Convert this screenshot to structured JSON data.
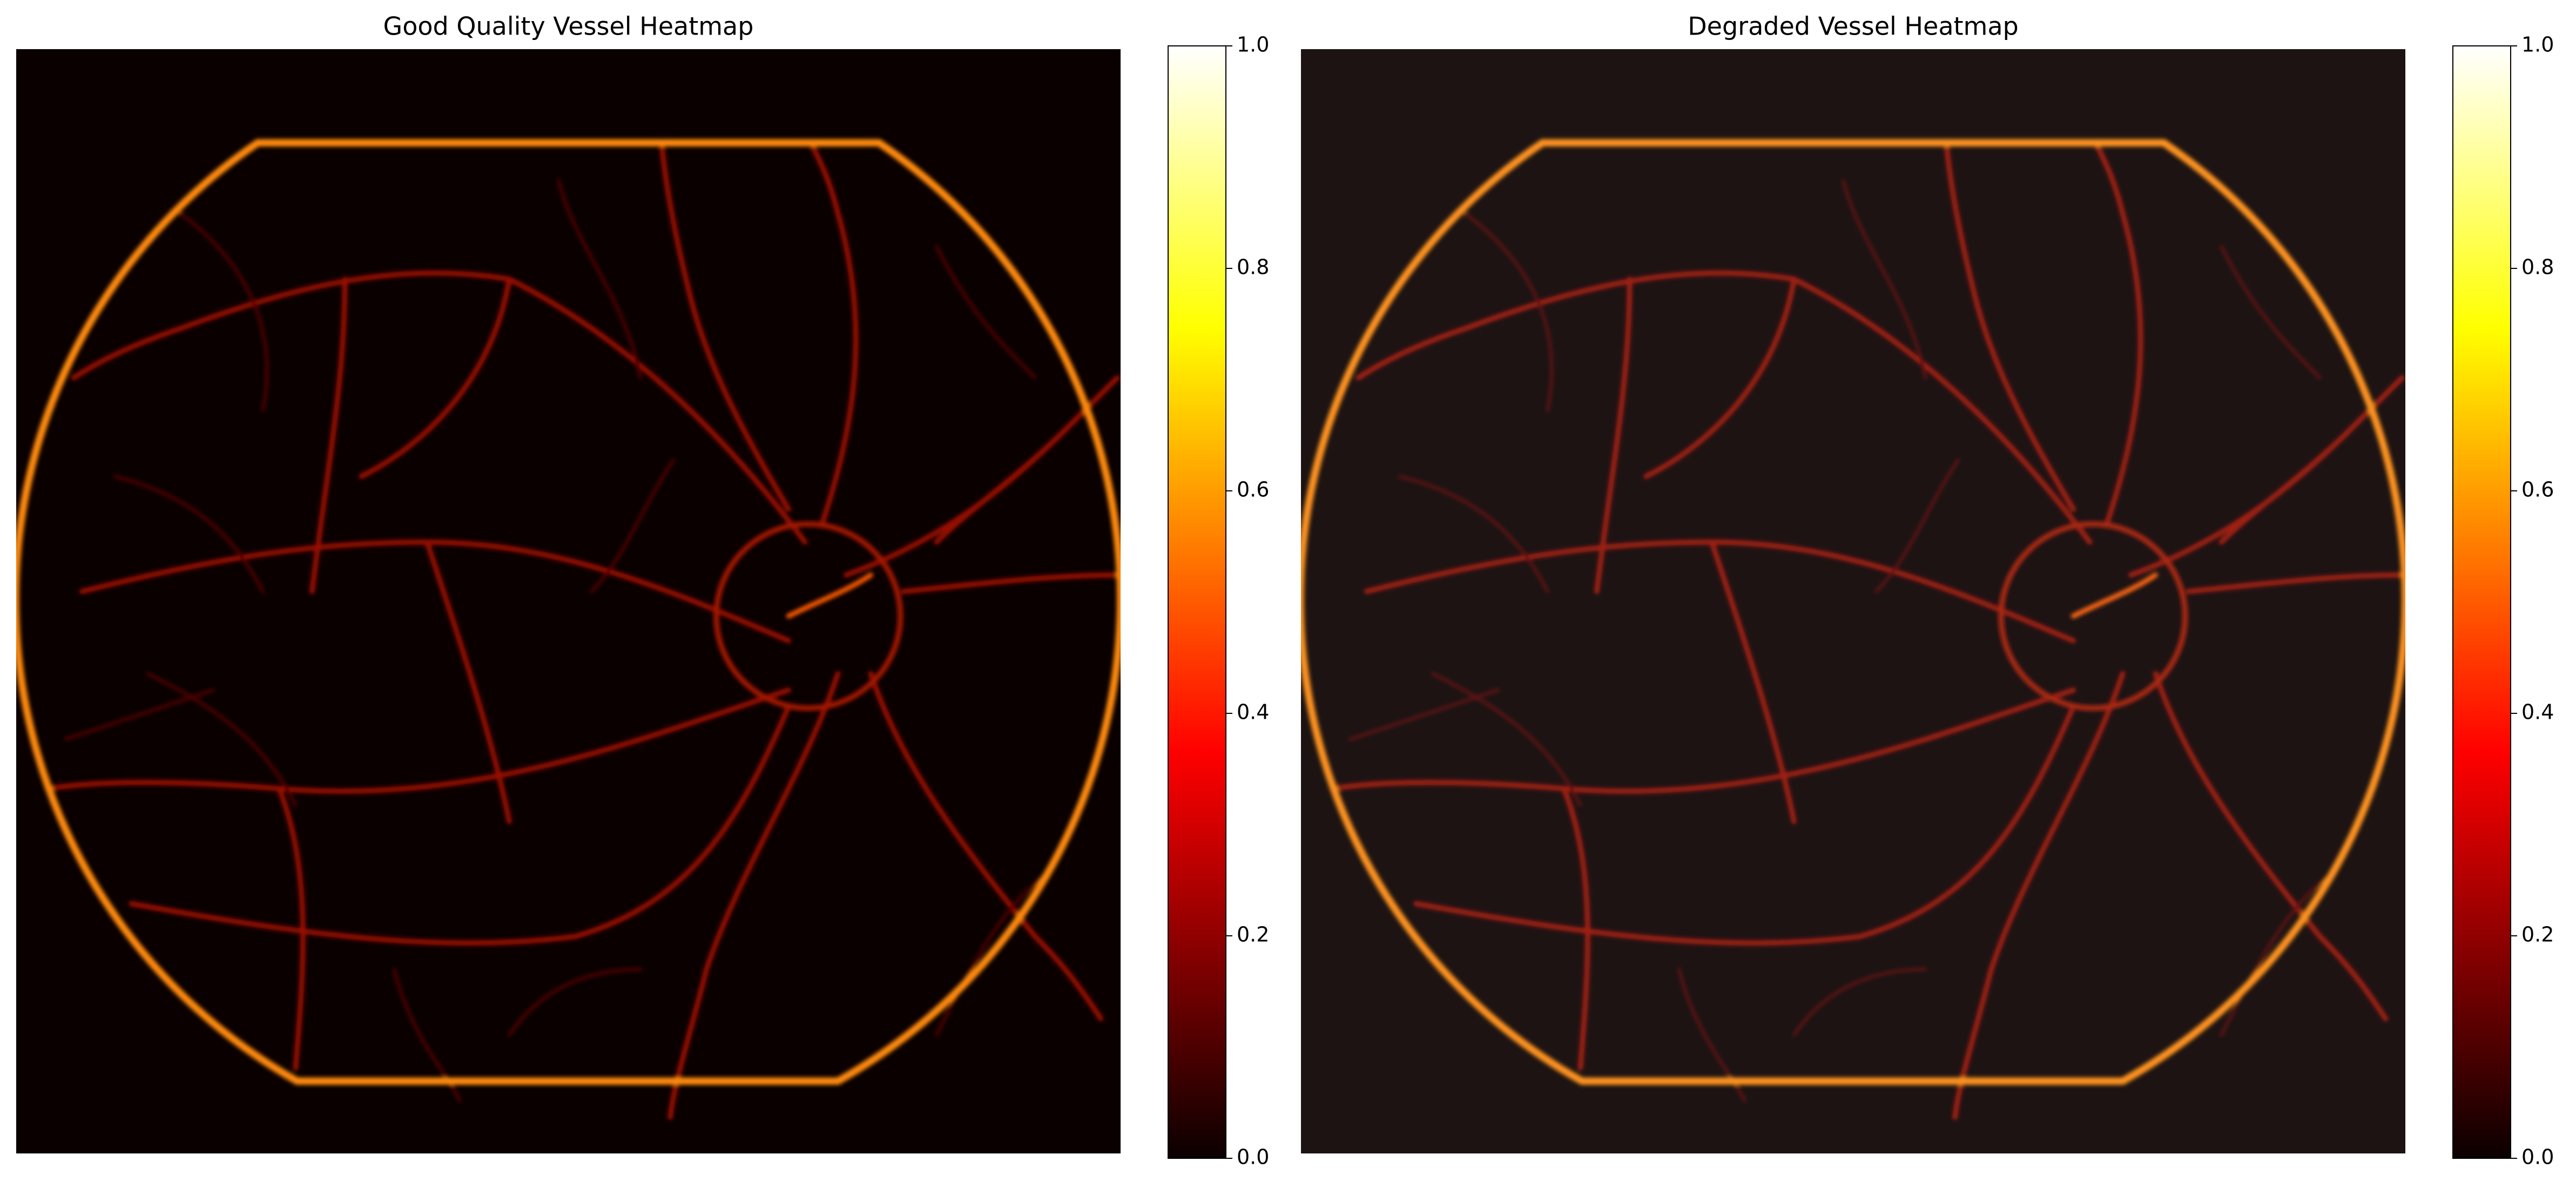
{
  "chart_data": [
    {
      "type": "heatmap",
      "title": "Good Quality Vessel Heatmap",
      "colormap": "hot",
      "clim": [
        0,
        1
      ],
      "colorbar_ticks": [
        {
          "value": 0,
          "label": "0.0"
        },
        {
          "value": 0.2,
          "label": "0.2"
        },
        {
          "value": 0.4,
          "label": "0.4"
        },
        {
          "value": 0.6,
          "label": "0.6"
        },
        {
          "value": 0.8,
          "label": "0.8"
        },
        {
          "value": 1,
          "label": "1.0"
        }
      ]
    },
    {
      "type": "heatmap",
      "title": "Degraded Vessel Heatmap",
      "colormap": "hot",
      "clim": [
        0,
        1
      ],
      "colorbar_ticks": [
        {
          "value": 0,
          "label": "0.0"
        },
        {
          "value": 0.2,
          "label": "0.2"
        },
        {
          "value": 0.4,
          "label": "0.4"
        },
        {
          "value": 0.6,
          "label": "0.6"
        },
        {
          "value": 0.8,
          "label": "0.8"
        },
        {
          "value": 1,
          "label": "1.0"
        }
      ]
    }
  ]
}
